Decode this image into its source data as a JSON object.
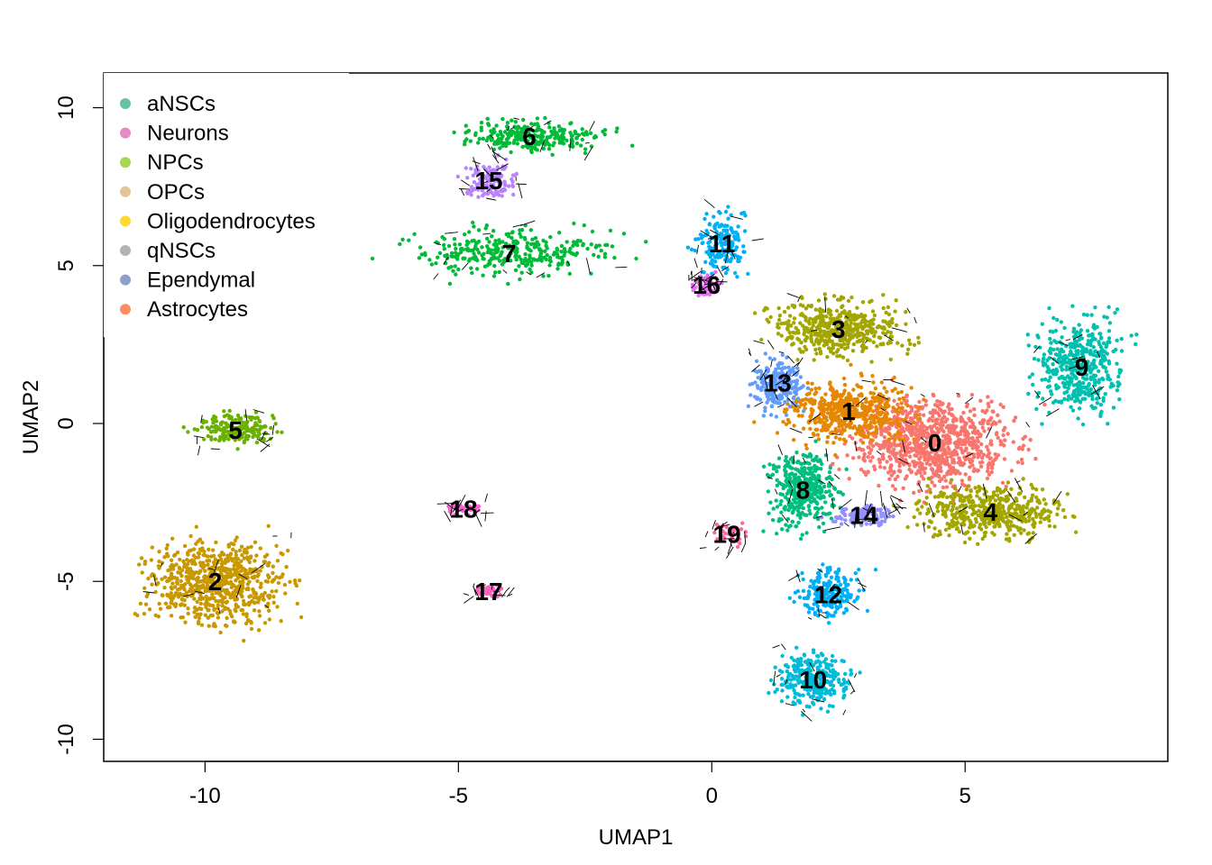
{
  "chart_data": {
    "type": "scatter",
    "xlabel": "UMAP1",
    "ylabel": "UMAP2",
    "xlim": [
      -12,
      9
    ],
    "ylim": [
      -10.7,
      11.1
    ],
    "xticks": [
      -10,
      -5,
      0,
      5
    ],
    "yticks": [
      -10,
      -5,
      0,
      5,
      10
    ],
    "legend": {
      "position": "top-left",
      "entries": [
        {
          "name": "aNSCs",
          "color": "#66C2A5"
        },
        {
          "name": "Neurons",
          "color": "#E78AC3"
        },
        {
          "name": "NPCs",
          "color": "#A6D854"
        },
        {
          "name": "OPCs",
          "color": "#E5C494"
        },
        {
          "name": "Oligodendrocytes",
          "color": "#FFD92F"
        },
        {
          "name": "qNSCs",
          "color": "#B3B3B3"
        },
        {
          "name": "Ependymal",
          "color": "#8DA0CB"
        },
        {
          "name": "Astrocytes",
          "color": "#FC8D62"
        }
      ]
    },
    "clusters": [
      {
        "label": "0",
        "x": 4.4,
        "y": -0.6,
        "color": "#F8766D"
      },
      {
        "label": "1",
        "x": 2.7,
        "y": 0.4,
        "color": "#E58700"
      },
      {
        "label": "2",
        "x": -9.8,
        "y": -5.0,
        "color": "#C99800"
      },
      {
        "label": "3",
        "x": 2.5,
        "y": 3.0,
        "color": "#A3A500"
      },
      {
        "label": "4",
        "x": 5.5,
        "y": -2.8,
        "color": "#A3A500"
      },
      {
        "label": "5",
        "x": -9.4,
        "y": -0.2,
        "color": "#6BB100"
      },
      {
        "label": "6",
        "x": -3.6,
        "y": 9.1,
        "color": "#00BA38"
      },
      {
        "label": "7",
        "x": -4.0,
        "y": 5.4,
        "color": "#00BA38"
      },
      {
        "label": "8",
        "x": 1.8,
        "y": -2.1,
        "color": "#00BF7D"
      },
      {
        "label": "9",
        "x": 7.3,
        "y": 1.8,
        "color": "#00C0AF"
      },
      {
        "label": "10",
        "x": 2.0,
        "y": -8.1,
        "color": "#00BCD8"
      },
      {
        "label": "11",
        "x": 0.2,
        "y": 5.7,
        "color": "#00B0F6"
      },
      {
        "label": "12",
        "x": 2.3,
        "y": -5.4,
        "color": "#00B0F6"
      },
      {
        "label": "13",
        "x": 1.3,
        "y": 1.3,
        "color": "#619CFF"
      },
      {
        "label": "14",
        "x": 3.0,
        "y": -2.9,
        "color": "#9590FF"
      },
      {
        "label": "15",
        "x": -4.4,
        "y": 7.7,
        "color": "#B983FF"
      },
      {
        "label": "16",
        "x": -0.1,
        "y": 4.4,
        "color": "#E76BF3"
      },
      {
        "label": "17",
        "x": -4.4,
        "y": -5.3,
        "color": "#FF62BC"
      },
      {
        "label": "18",
        "x": -4.9,
        "y": -2.7,
        "color": "#FD61D1"
      },
      {
        "label": "19",
        "x": 0.3,
        "y": -3.5,
        "color": "#FF67A4"
      }
    ]
  }
}
